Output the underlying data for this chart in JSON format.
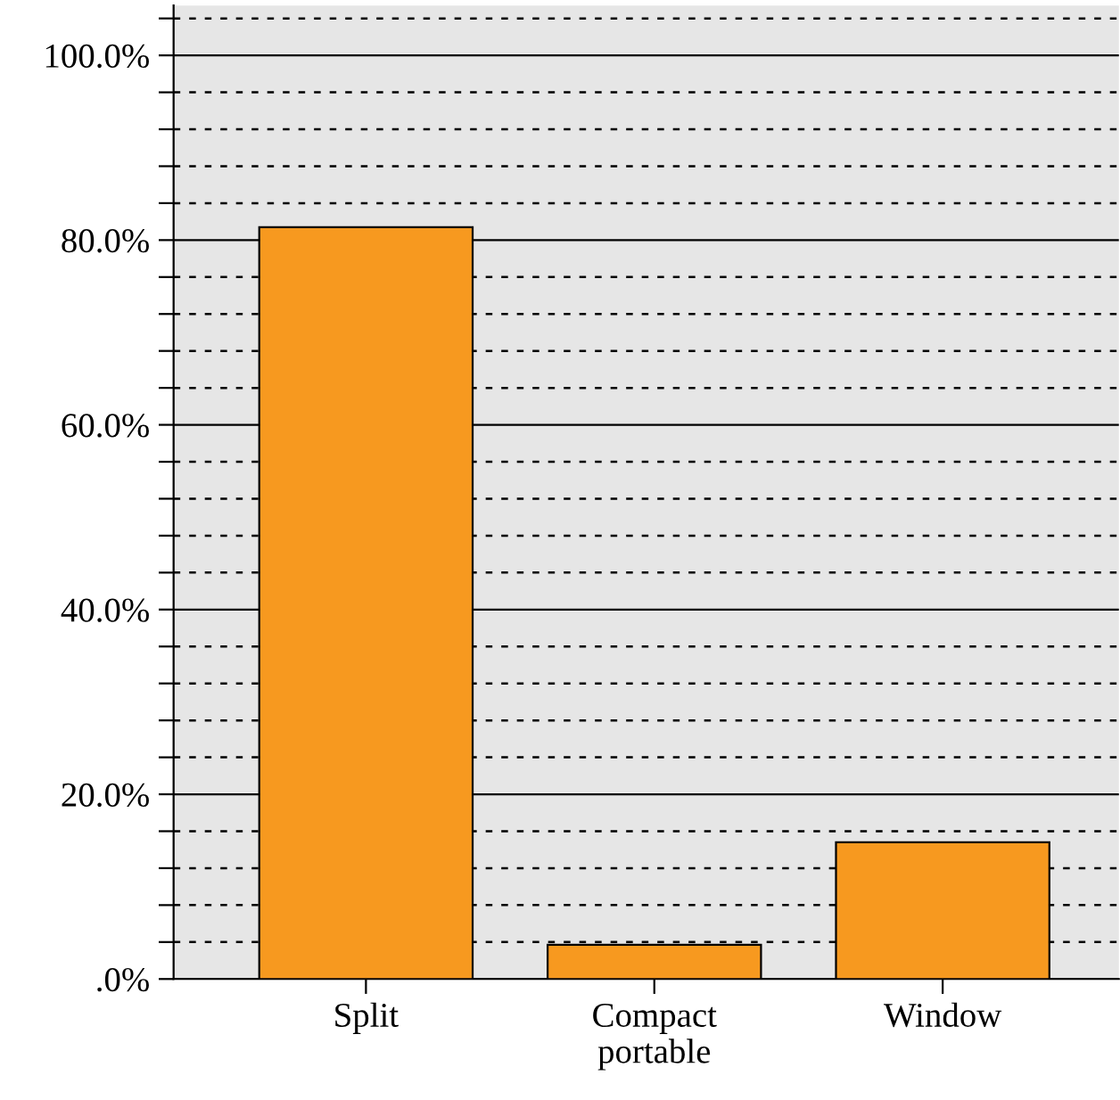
{
  "chart_data": {
    "type": "bar",
    "categories": [
      "Split",
      "Compact\nportable",
      "Window"
    ],
    "values": [
      81.4,
      3.7,
      14.8
    ],
    "color": "#f7991f",
    "ylim": [
      0,
      105.4
    ],
    "yticks": [
      {
        "value": 0,
        "label": ".0%"
      },
      {
        "value": 4,
        "label": null
      },
      {
        "value": 8,
        "label": null
      },
      {
        "value": 12,
        "label": null
      },
      {
        "value": 16,
        "label": null
      },
      {
        "value": 20,
        "label": "20.0%"
      },
      {
        "value": 24,
        "label": null
      },
      {
        "value": 28,
        "label": null
      },
      {
        "value": 32,
        "label": null
      },
      {
        "value": 36,
        "label": null
      },
      {
        "value": 40,
        "label": "40.0%"
      },
      {
        "value": 44,
        "label": null
      },
      {
        "value": 48,
        "label": null
      },
      {
        "value": 52,
        "label": null
      },
      {
        "value": 56,
        "label": null
      },
      {
        "value": 60,
        "label": "60.0%"
      },
      {
        "value": 64,
        "label": null
      },
      {
        "value": 68,
        "label": null
      },
      {
        "value": 72,
        "label": null
      },
      {
        "value": 76,
        "label": null
      },
      {
        "value": 80,
        "label": "80.0%"
      },
      {
        "value": 84,
        "label": null
      },
      {
        "value": 88,
        "label": null
      },
      {
        "value": 92,
        "label": null
      },
      {
        "value": 96,
        "label": null
      },
      {
        "value": 100,
        "label": "100.0%"
      },
      {
        "value": 104,
        "label": null
      }
    ],
    "grid": "y"
  }
}
